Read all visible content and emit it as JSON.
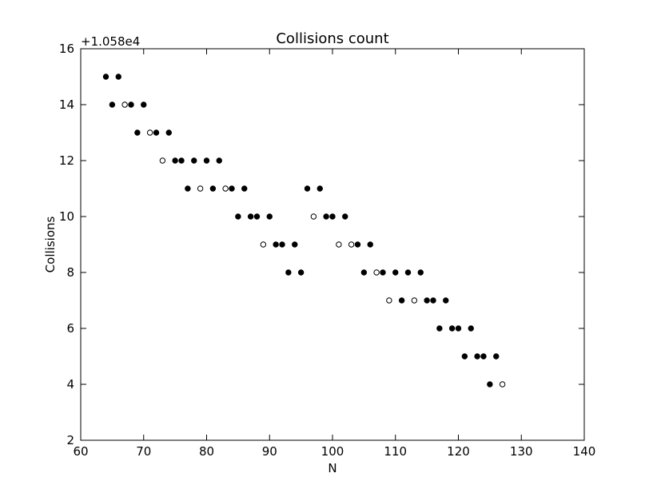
{
  "chart_data": {
    "type": "scatter",
    "title": "Collisions count",
    "xlabel": "N",
    "ylabel": "Collisions",
    "y_offset_label": "+1.058e4",
    "xlim": [
      60,
      140
    ],
    "ylim": [
      2,
      16
    ],
    "xticks": [
      60,
      70,
      80,
      90,
      100,
      110,
      120,
      130,
      140
    ],
    "yticks": [
      2,
      4,
      6,
      8,
      10,
      12,
      14,
      16
    ],
    "grid": false,
    "legend": "none",
    "series": [
      {
        "marker": "filled-circle",
        "color": "#000000",
        "points": [
          [
            64,
            15
          ],
          [
            65,
            14
          ],
          [
            66,
            15
          ],
          [
            68,
            14
          ],
          [
            69,
            13
          ],
          [
            70,
            14
          ],
          [
            72,
            13
          ],
          [
            74,
            13
          ],
          [
            75,
            12
          ],
          [
            76,
            12
          ],
          [
            77,
            11
          ],
          [
            78,
            12
          ],
          [
            80,
            12
          ],
          [
            81,
            11
          ],
          [
            82,
            12
          ],
          [
            84,
            11
          ],
          [
            85,
            10
          ],
          [
            86,
            11
          ],
          [
            87,
            10
          ],
          [
            88,
            10
          ],
          [
            90,
            10
          ],
          [
            91,
            9
          ],
          [
            92,
            9
          ],
          [
            93,
            8
          ],
          [
            94,
            9
          ],
          [
            95,
            8
          ],
          [
            96,
            11
          ],
          [
            98,
            11
          ],
          [
            99,
            10
          ],
          [
            100,
            10
          ],
          [
            102,
            10
          ],
          [
            104,
            9
          ],
          [
            105,
            8
          ],
          [
            106,
            9
          ],
          [
            108,
            8
          ],
          [
            110,
            8
          ],
          [
            111,
            7
          ],
          [
            112,
            8
          ],
          [
            114,
            8
          ],
          [
            115,
            7
          ],
          [
            116,
            7
          ],
          [
            117,
            6
          ],
          [
            118,
            7
          ],
          [
            119,
            6
          ],
          [
            120,
            6
          ],
          [
            121,
            5
          ],
          [
            122,
            6
          ],
          [
            123,
            5
          ],
          [
            124,
            5
          ],
          [
            125,
            4
          ],
          [
            126,
            5
          ]
        ]
      },
      {
        "marker": "open-circle",
        "color": "#000000",
        "points": [
          [
            67,
            14
          ],
          [
            71,
            13
          ],
          [
            73,
            12
          ],
          [
            79,
            11
          ],
          [
            83,
            11
          ],
          [
            89,
            9
          ],
          [
            97,
            10
          ],
          [
            101,
            9
          ],
          [
            103,
            9
          ],
          [
            107,
            8
          ],
          [
            109,
            7
          ],
          [
            113,
            7
          ],
          [
            127,
            4
          ]
        ]
      }
    ]
  }
}
